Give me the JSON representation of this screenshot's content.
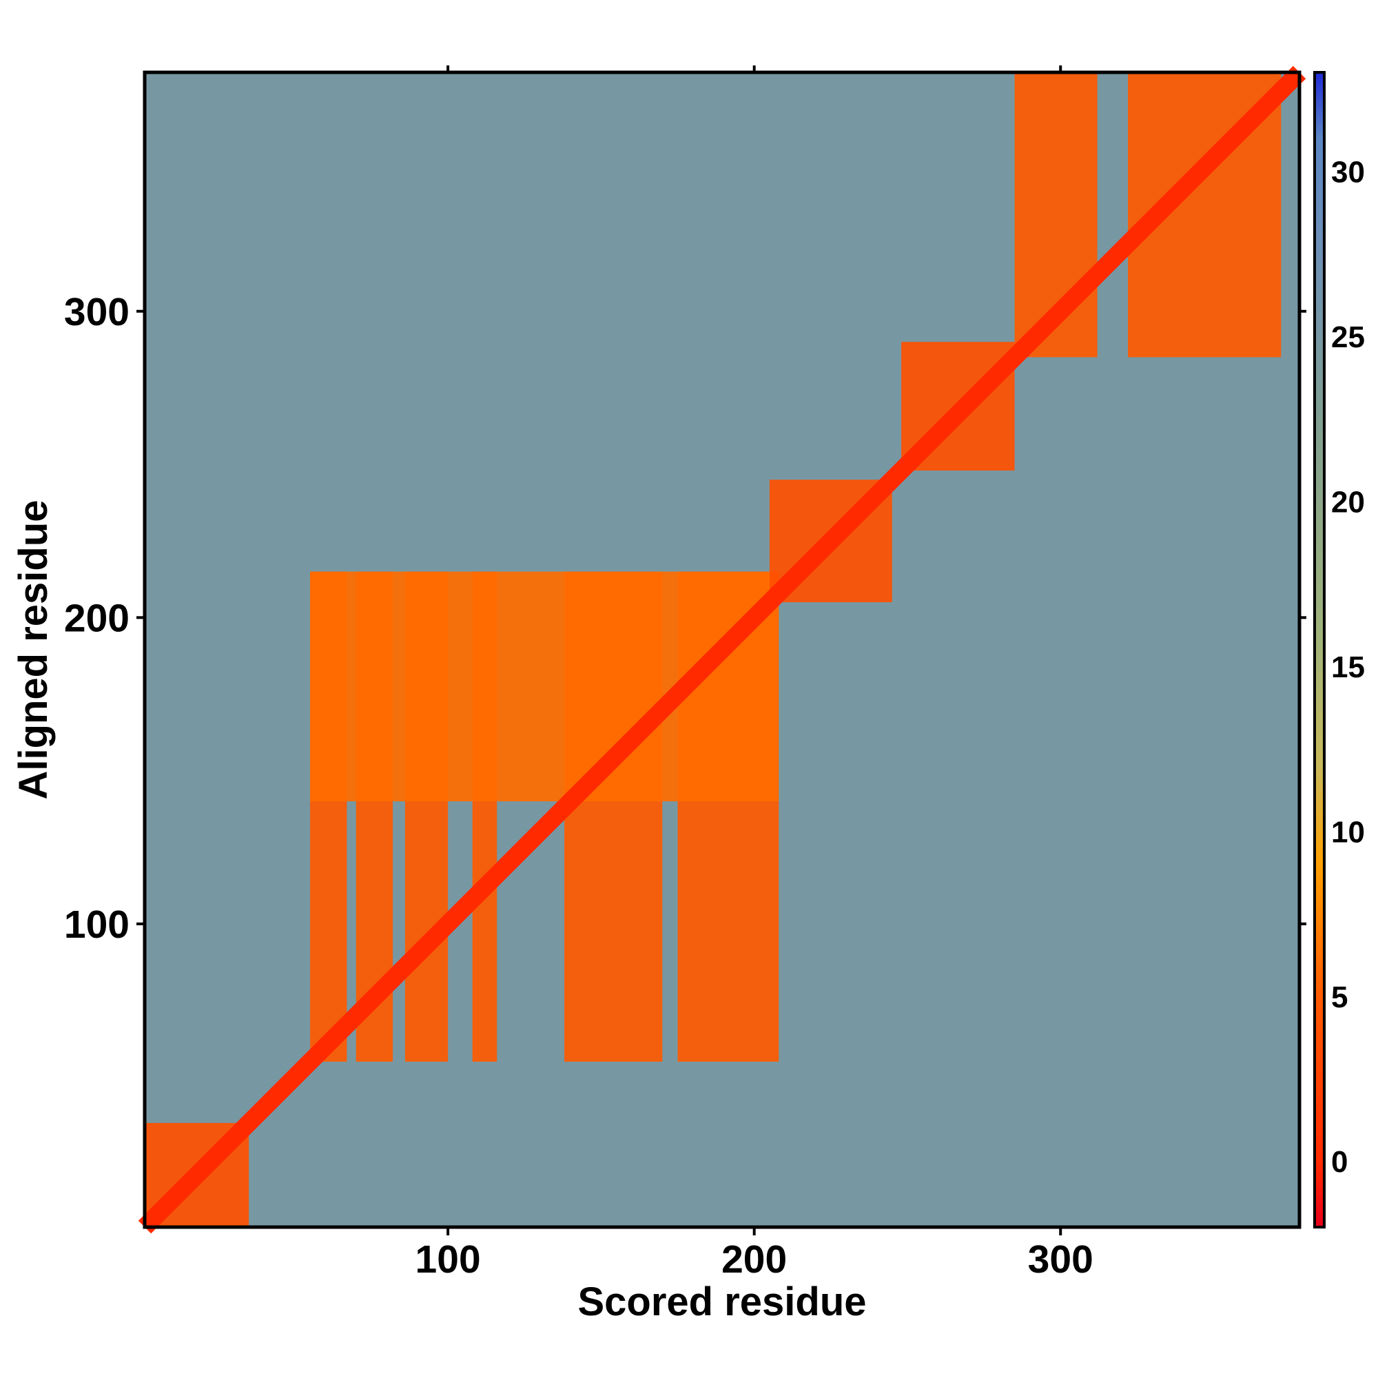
{
  "chart_data": {
    "type": "heatmap",
    "title": "",
    "xlabel": "Scored residue",
    "ylabel": "Aligned residue",
    "xlim": [
      1,
      378
    ],
    "ylim": [
      1,
      378
    ],
    "x_ticks": [
      100,
      200,
      300
    ],
    "y_ticks": [
      100,
      200,
      300
    ],
    "x_tick_labels": [
      "100",
      "200",
      "300"
    ],
    "y_tick_labels": [
      "100",
      "200",
      "300"
    ],
    "colorbar": {
      "range": [
        -2,
        33
      ],
      "ticks": [
        0,
        5,
        10,
        15,
        20,
        25,
        30
      ],
      "tick_labels": [
        "0",
        "5",
        "10",
        "15",
        "20",
        "25",
        "30"
      ],
      "colors": [
        {
          "value": -2,
          "color": "#e8001a"
        },
        {
          "value": 0,
          "color": "#ff2a00"
        },
        {
          "value": 5,
          "color": "#ff5a00"
        },
        {
          "value": 9,
          "color": "#ffa000"
        },
        {
          "value": 12,
          "color": "#c8b95a"
        },
        {
          "value": 16,
          "color": "#9fb37a"
        },
        {
          "value": 22,
          "color": "#82a08e"
        },
        {
          "value": 28,
          "color": "#6b8fb8"
        },
        {
          "value": 31,
          "color": "#5b86c4"
        },
        {
          "value": 33,
          "color": "#1f2bd6"
        }
      ]
    },
    "diagonal_value": 0,
    "background_value": 25,
    "low_error_blocks": [
      {
        "x": [
          1,
          35
        ],
        "y": [
          1,
          35
        ],
        "value": 4
      },
      {
        "x": [
          55,
          67
        ],
        "y": [
          55,
          215
        ],
        "value": 5
      },
      {
        "x": [
          70,
          82
        ],
        "y": [
          55,
          215
        ],
        "value": 5
      },
      {
        "x": [
          86,
          100
        ],
        "y": [
          55,
          215
        ],
        "value": 5
      },
      {
        "x": [
          108,
          116
        ],
        "y": [
          55,
          215
        ],
        "value": 5
      },
      {
        "x": [
          138,
          170
        ],
        "y": [
          55,
          215
        ],
        "value": 5
      },
      {
        "x": [
          175,
          208
        ],
        "y": [
          55,
          215
        ],
        "value": 5
      },
      {
        "x": [
          55,
          208
        ],
        "y": [
          140,
          215
        ],
        "value": 6
      },
      {
        "x": [
          205,
          245
        ],
        "y": [
          205,
          245
        ],
        "value": 4
      },
      {
        "x": [
          248,
          285
        ],
        "y": [
          248,
          290
        ],
        "value": 4
      },
      {
        "x": [
          285,
          312
        ],
        "y": [
          285,
          378
        ],
        "value": 5
      },
      {
        "x": [
          322,
          372
        ],
        "y": [
          285,
          378
        ],
        "value": 5
      }
    ]
  }
}
